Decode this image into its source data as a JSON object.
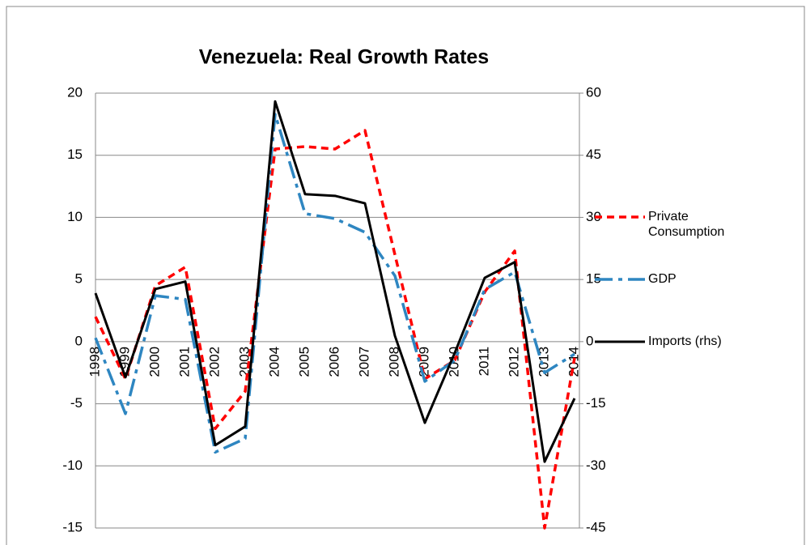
{
  "chart_data": {
    "type": "line",
    "title": "Venezuela: Real Growth Rates",
    "categories": [
      "1998",
      "1999",
      "2000",
      "2001",
      "2002",
      "2003",
      "2004",
      "2005",
      "2006",
      "2007",
      "2008",
      "2009",
      "2010",
      "2011",
      "2012",
      "2013",
      "2014"
    ],
    "series": [
      {
        "name": "Private Consumption",
        "color": "#ff0000",
        "values": [
          2.0,
          -3.0,
          4.5,
          6.0,
          -7.0,
          -4.0,
          15.5,
          15.7,
          15.5,
          17.0,
          7.0,
          -3.0,
          -1.5,
          4.0,
          7.3,
          -15.0,
          -1.3
        ]
      },
      {
        "name": "GDP",
        "color": "#2e86c1",
        "values": [
          0.3,
          -5.8,
          3.7,
          3.4,
          -8.9,
          -7.8,
          18.3,
          10.3,
          9.9,
          8.8,
          5.3,
          -3.2,
          -1.5,
          4.2,
          5.6,
          -2.5,
          -1.0
        ]
      },
      {
        "name": "Imports (rhs)",
        "color": "#000000",
        "axis": "y2",
        "values": [
          11.7,
          -8.6,
          12.7,
          14.5,
          -25.0,
          -20.5,
          58.0,
          35.6,
          35.2,
          33.4,
          1.4,
          -19.6,
          -2.7,
          15.4,
          19.2,
          -29.0,
          -13.7
        ]
      }
    ],
    "ylim": [
      -15,
      20
    ],
    "yticks": [
      -15,
      -10,
      -5,
      0,
      5,
      10,
      15,
      20
    ],
    "y2lim": [
      -45,
      60
    ],
    "y2ticks": [
      -45,
      -30,
      -15,
      0,
      15,
      30,
      45,
      60
    ],
    "grid": true,
    "legend": "right"
  }
}
